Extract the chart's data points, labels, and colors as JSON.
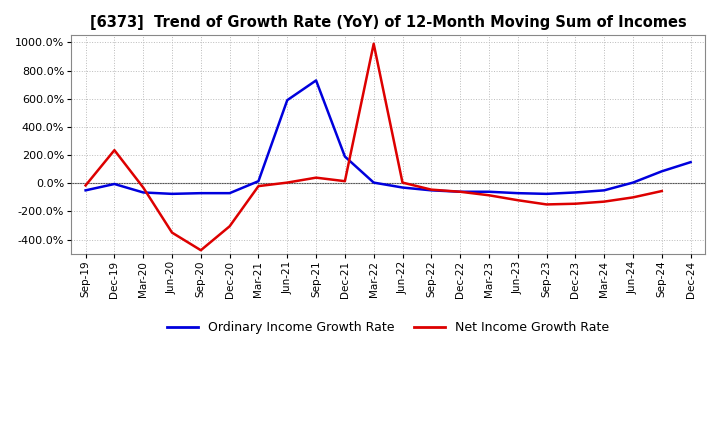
{
  "title": "[6373]  Trend of Growth Rate (YoY) of 12-Month Moving Sum of Incomes",
  "ylim": [
    -500,
    1050
  ],
  "yticks": [
    -400,
    -200,
    0,
    200,
    400,
    600,
    800,
    1000
  ],
  "background_color": "#ffffff",
  "grid_color": "#bbbbbb",
  "ordinary_color": "#0000dd",
  "net_color": "#dd0000",
  "legend_ordinary": "Ordinary Income Growth Rate",
  "legend_net": "Net Income Growth Rate",
  "x_labels": [
    "Sep-19",
    "Dec-19",
    "Mar-20",
    "Jun-20",
    "Sep-20",
    "Dec-20",
    "Mar-21",
    "Jun-21",
    "Sep-21",
    "Dec-21",
    "Mar-22",
    "Jun-22",
    "Sep-22",
    "Dec-22",
    "Mar-23",
    "Jun-23",
    "Sep-23",
    "Dec-23",
    "Mar-24",
    "Jun-24",
    "Sep-24",
    "Dec-24"
  ],
  "ordinary_y": [
    -50,
    -5,
    -65,
    -75,
    -70,
    -70,
    15,
    590,
    730,
    190,
    5,
    -30,
    -50,
    -60,
    -60,
    -70,
    -75,
    -65,
    -50,
    5,
    85,
    150
  ],
  "net_y": [
    -15,
    235,
    -30,
    -350,
    -475,
    -305,
    -20,
    5,
    40,
    15,
    990,
    5,
    -45,
    -60,
    -85,
    -120,
    -150,
    -145,
    -130,
    -100,
    -55,
    null
  ]
}
